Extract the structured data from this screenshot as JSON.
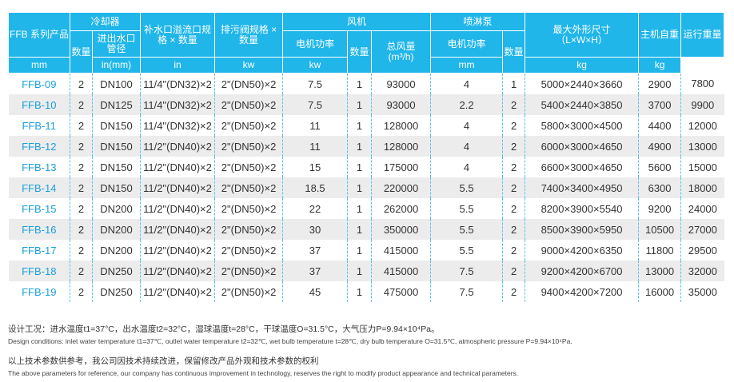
{
  "header": {
    "series": "FFB 系列产品",
    "cooler": "冷却器",
    "cooler_qty": "数量",
    "cooler_pipe": "进出水口管径",
    "cooler_pipe_unit": "mm",
    "makeup": "补水口溢流口规格 × 数量",
    "makeup_unit": "in(mm)",
    "drain": "排污阀规格 × 数量",
    "drain_unit": "in",
    "fan": "风机",
    "fan_power": "电机功率",
    "fan_power_unit": "kw",
    "fan_qty": "数量",
    "fan_air": "总风量",
    "fan_air_unit": "(m³/h)",
    "pump": "喷淋泵",
    "pump_power": "电机功率",
    "pump_power_unit": "kw",
    "pump_qty": "数量",
    "dims": "最大外形尺寸",
    "dims_sub": "（L×W×H）",
    "dims_unit": "mm",
    "weight": "主机自重",
    "weight_unit": "kg",
    "op_weight": "运行重量",
    "op_weight_unit": "kg"
  },
  "rows": [
    [
      "FFB-09",
      "2",
      "DN100",
      "11/4\"(DN32)×2",
      "2\"(DN50)×2",
      "7.5",
      "1",
      "93000",
      "4",
      "1",
      "5000×2440×3660",
      "2900",
      "7800"
    ],
    [
      "FFB-10",
      "2",
      "DN125",
      "11/4\"(DN32)×2",
      "2\"(DN50)×2",
      "7.5",
      "1",
      "93000",
      "2.2",
      "2",
      "5400×2440×3850",
      "3700",
      "9900"
    ],
    [
      "FFB-11",
      "2",
      "DN150",
      "11/4\"(DN32)×2",
      "2\"(DN50)×2",
      "11",
      "1",
      "128000",
      "4",
      "2",
      "5800×3000×4500",
      "4400",
      "12000"
    ],
    [
      "FFB-12",
      "2",
      "DN150",
      "11/2\"(DN40)×2",
      "2\"(DN50)×2",
      "11",
      "1",
      "128000",
      "4",
      "2",
      "6000×3000×4650",
      "4900",
      "13000"
    ],
    [
      "FFB-13",
      "2",
      "DN150",
      "11/2\"(DN40)×2",
      "2\"(DN50)×2",
      "15",
      "1",
      "175000",
      "4",
      "2",
      "6600×3000×4650",
      "5600",
      "15000"
    ],
    [
      "FFB-14",
      "2",
      "DN150",
      "11/2\"(DN40)×2",
      "2\"(DN50)×2",
      "18.5",
      "1",
      "220000",
      "5.5",
      "2",
      "7400×3400×4950",
      "6300",
      "18000"
    ],
    [
      "FFB-15",
      "2",
      "DN200",
      "11/2\"(DN40)×2",
      "2\"(DN50)×2",
      "22",
      "1",
      "262000",
      "5.5",
      "2",
      "8200×3900×5540",
      "9200",
      "24000"
    ],
    [
      "FFB-16",
      "2",
      "DN200",
      "11/2\"(DN40)×2",
      "2\"(DN50)×2",
      "30",
      "1",
      "350000",
      "5.5",
      "2",
      "8500×3900×5950",
      "10500",
      "27000"
    ],
    [
      "FFB-17",
      "2",
      "DN200",
      "11/2\"(DN40)×2",
      "2\"(DN50)×2",
      "37",
      "1",
      "415000",
      "5.5",
      "2",
      "9000×4200×6350",
      "11800",
      "29500"
    ],
    [
      "FFB-18",
      "2",
      "DN250",
      "11/2\"(DN40)×2",
      "2\"(DN50)×2",
      "37",
      "1",
      "415000",
      "7.5",
      "2",
      "9200×4200×6700",
      "13000",
      "32000"
    ],
    [
      "FFB-19",
      "2",
      "DN250",
      "11/2\"(DN40)×2",
      "2\"(DN50)×2",
      "45",
      "1",
      "475000",
      "7.5",
      "2",
      "9400×4200×7200",
      "16000",
      "35000"
    ]
  ],
  "notes": {
    "design_cn": "设计工况：进水温度t1=37°C，出水温度t2=32°C，湿球温度t=28°C，干球温度O=31.5°C，大气压力P=9.94×10⁴Pa。",
    "design_en": "Design conditions: inlet water temperature t1=37℃, outlet water temperature t2=32℃, wet bulb temperature t=28℃,  dry bulb temperature O=31.5℃, atmospheric pressure P=9.94×10⁴Pa.",
    "ref_cn": "以上技术参数供参考，我公司因技术持续改进，保留修改产品外观和技术参数的权利",
    "ref_en": "The above parameters for reference, our company has continuous improvement in technology, reserves the right to modify product appearance and technical parameters."
  }
}
